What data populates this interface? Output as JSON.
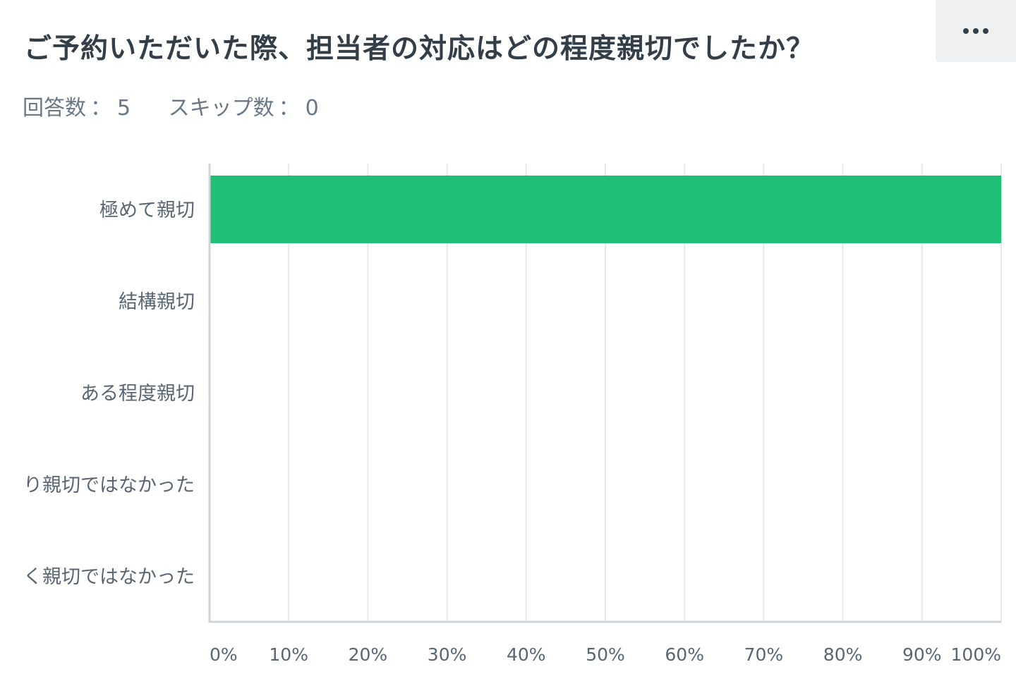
{
  "question": {
    "title": "ご予約いただいた際、担当者の対応はどの程度親切でしたか？"
  },
  "stats": {
    "answered_label": "回答数",
    "answered_count": "5",
    "skipped_label": "スキップ数",
    "skipped_count": "0"
  },
  "menu": {
    "icon": "more-horizontal-icon"
  },
  "colors": {
    "bar": "#1fbf75",
    "grid": "#e6e8eb",
    "axis": "#cfd3d8"
  },
  "chart_data": {
    "type": "bar",
    "orientation": "horizontal",
    "categories": [
      "極めて親切",
      "結構親切",
      "ある程度親切",
      "り親切ではなかった",
      "く親切ではなかった"
    ],
    "values": [
      100,
      0,
      0,
      0,
      0
    ],
    "unit": "%",
    "xlim": [
      0,
      100
    ],
    "xticks": [
      "0%",
      "10%",
      "20%",
      "30%",
      "40%",
      "50%",
      "60%",
      "70%",
      "80%",
      "90%",
      "100%"
    ],
    "grid": true
  }
}
